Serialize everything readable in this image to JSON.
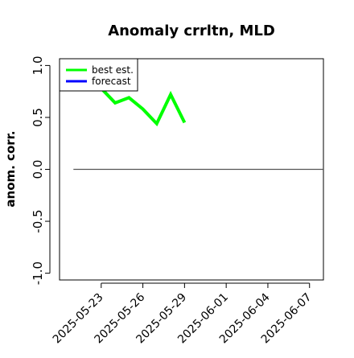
{
  "chart_data": {
    "type": "line",
    "title": "Anomaly crrltn, MLD",
    "xlabel": "",
    "ylabel": "anom. corr.",
    "ylim": [
      -1.0,
      1.0
    ],
    "xlim": [
      "2025-05-20",
      "2025-06-08"
    ],
    "y_ticks": [
      "-1.0",
      "-0.5",
      "0.0",
      "0.5",
      "1.0"
    ],
    "x_ticks": [
      "2025-05-23",
      "2025-05-26",
      "2025-05-29",
      "2025-06-01",
      "2025-06-04",
      "2025-06-07"
    ],
    "highlighted_x_tick": "2025-05-29",
    "x_tick_colors": {
      "default": "#000000",
      "highlight": "#228b22"
    },
    "reference_line": {
      "y": 0.0,
      "x_start": "2025-05-21",
      "x_end": "2025-06-08",
      "color": "#555555"
    },
    "legend": {
      "position": "top-left",
      "entries": [
        {
          "label": "best est.",
          "color": "#00ff00"
        },
        {
          "label": "forecast",
          "color": "#0000ff"
        }
      ]
    },
    "series": [
      {
        "name": "best est.",
        "color": "#00ff00",
        "x": [
          "2025-05-23",
          "2025-05-24",
          "2025-05-25",
          "2025-05-26",
          "2025-05-27",
          "2025-05-28",
          "2025-05-29"
        ],
        "y": [
          0.78,
          0.64,
          0.69,
          0.58,
          0.44,
          0.72,
          0.45
        ]
      },
      {
        "name": "forecast",
        "color": "#0000ff",
        "x": [],
        "y": []
      }
    ]
  }
}
